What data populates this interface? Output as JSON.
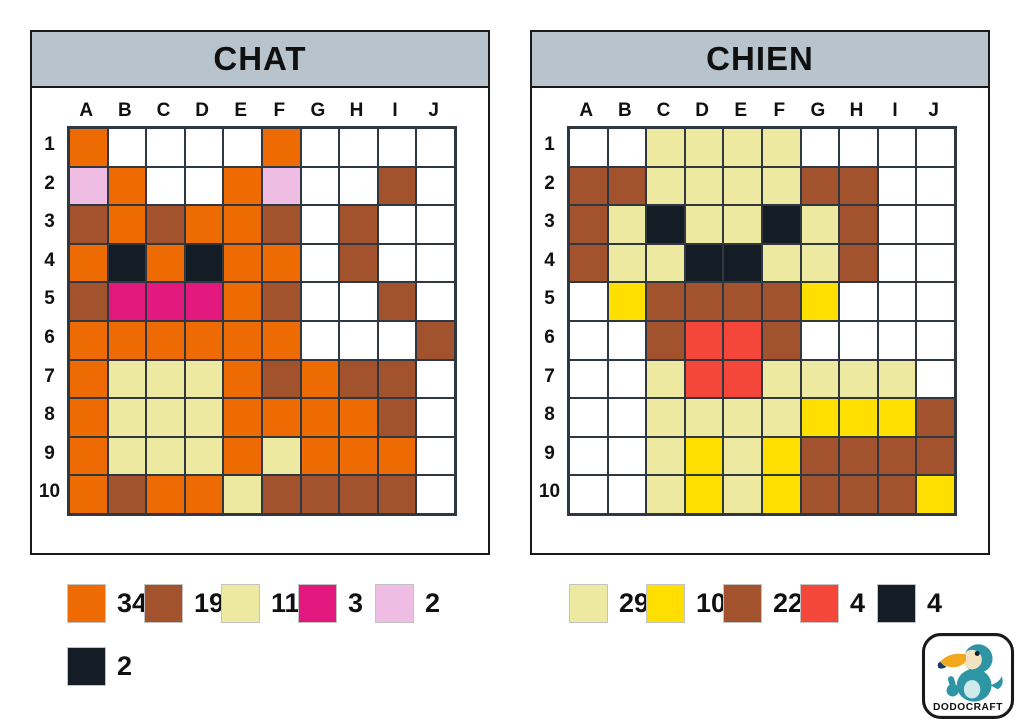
{
  "colors": {
    "header_bg": "#B7C4CE",
    "panel_border": "#1A1A1A",
    "grid_line": "#2F3740"
  },
  "palette": {
    "O": "#ED6B02",
    "B": "#A2522D",
    "C": "#EDE9A0",
    "M": "#E2187E",
    "P": "#EFBCE3",
    "K": "#141C25",
    "Y": "#FFDF00",
    "R": "#F5463A",
    "W": "#FFFFFF"
  },
  "palette_names": {
    "O": "orange",
    "B": "brown",
    "C": "cream",
    "M": "magenta",
    "P": "light-pink",
    "K": "black",
    "Y": "yellow",
    "R": "red",
    "W": "white"
  },
  "panels": [
    {
      "title": "CHAT",
      "columns": [
        "A",
        "B",
        "C",
        "D",
        "E",
        "F",
        "G",
        "H",
        "I",
        "J"
      ],
      "rows": [
        "1",
        "2",
        "3",
        "4",
        "5",
        "6",
        "7",
        "8",
        "9",
        "10"
      ],
      "grid": [
        "OWWWWOWWWW",
        "POWWOPWWBW",
        "BOBOOBWBWW",
        "OKOKOOWBWW",
        "BMMMOBWWBW",
        "OOOOOOWWWB",
        "OCCCOBOBBW",
        "OCCCOOOOBW",
        "OCCCOCOOOW",
        "OBOOCBBBBW"
      ],
      "legend": [
        {
          "key": "O",
          "count": "34"
        },
        {
          "key": "B",
          "count": "19"
        },
        {
          "key": "C",
          "count": "11"
        },
        {
          "key": "M",
          "count": "3"
        },
        {
          "key": "P",
          "count": "2"
        },
        {
          "key": "K",
          "count": "2"
        }
      ]
    },
    {
      "title": "CHIEN",
      "columns": [
        "A",
        "B",
        "C",
        "D",
        "E",
        "F",
        "G",
        "H",
        "I",
        "J"
      ],
      "rows": [
        "1",
        "2",
        "3",
        "4",
        "5",
        "6",
        "7",
        "8",
        "9",
        "10"
      ],
      "grid": [
        "WWCCCCWWWW",
        "BBCCCCBBWW",
        "BCKCCKCBWW",
        "BCCKKCCBWW",
        "WYBBBBYWWW",
        "WWBRRBWWWW",
        "WWCRRCCCCW",
        "WWCCCCYYYB",
        "WWCYCYBBBB",
        "WWCYCYBBBY"
      ],
      "legend": [
        {
          "key": "C",
          "count": "29"
        },
        {
          "key": "Y",
          "count": "10"
        },
        {
          "key": "B",
          "count": "22"
        },
        {
          "key": "R",
          "count": "4"
        },
        {
          "key": "K",
          "count": "4"
        }
      ]
    }
  ],
  "logo": {
    "text": "DODOCRAFT",
    "bird_color": "#2E95A5",
    "beak_color": "#F2A81D",
    "beak_tip_color": "#1C3C55",
    "face_color": "#F2E3C0"
  }
}
